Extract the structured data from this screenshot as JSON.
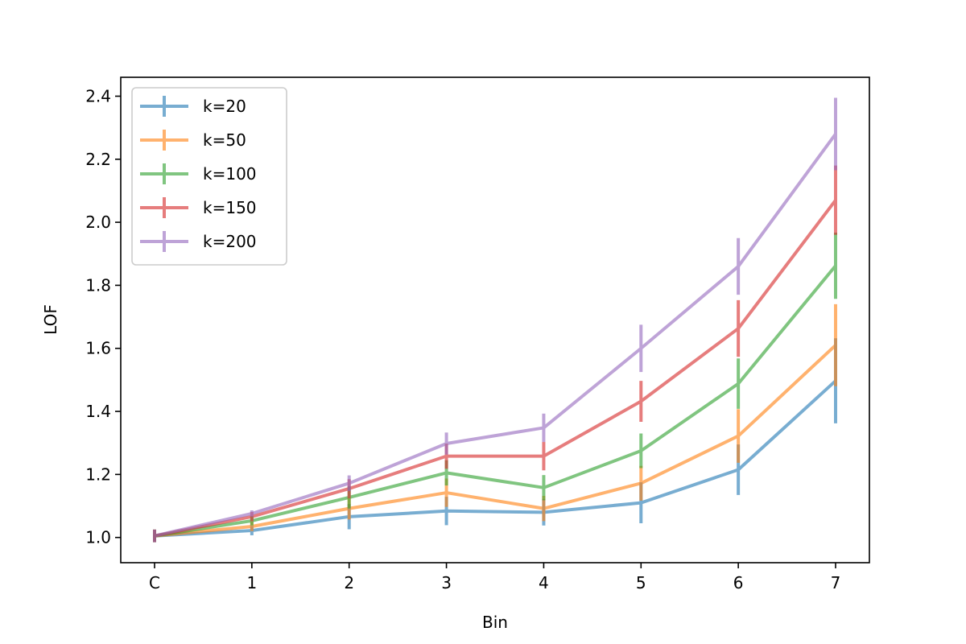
{
  "chart_data": {
    "type": "line",
    "xlabel": "Bin",
    "ylabel": "LOF",
    "categories": [
      "C",
      "1",
      "2",
      "3",
      "4",
      "5",
      "6",
      "7"
    ],
    "ylim": [
      0.92,
      2.46
    ],
    "yticks": [
      "1.0",
      "1.2",
      "1.4",
      "1.6",
      "1.8",
      "2.0",
      "2.2",
      "2.4"
    ],
    "grid": false,
    "legend": "upper-left",
    "error_bars": true,
    "series": [
      {
        "name": "k=20",
        "color": "#1f77b4",
        "values": [
          1.005,
          1.022,
          1.066,
          1.084,
          1.08,
          1.11,
          1.215,
          1.497
        ],
        "errors": [
          0.02,
          0.015,
          0.04,
          0.045,
          0.042,
          0.065,
          0.08,
          0.135
        ]
      },
      {
        "name": "k=50",
        "color": "#ff7f0e",
        "values": [
          1.005,
          1.035,
          1.092,
          1.142,
          1.092,
          1.172,
          1.322,
          1.61
        ],
        "errors": [
          0.02,
          0.015,
          0.035,
          0.045,
          0.04,
          0.055,
          0.085,
          0.13
        ]
      },
      {
        "name": "k=100",
        "color": "#2ca02c",
        "values": [
          1.005,
          1.053,
          1.127,
          1.205,
          1.158,
          1.275,
          1.488,
          1.862
        ],
        "errors": [
          0.02,
          0.015,
          0.035,
          0.04,
          0.04,
          0.055,
          0.08,
          0.105
        ]
      },
      {
        "name": "k=150",
        "color": "#d62728",
        "values": [
          1.005,
          1.066,
          1.155,
          1.258,
          1.258,
          1.432,
          1.663,
          2.07
        ],
        "errors": [
          0.02,
          0.015,
          0.03,
          0.04,
          0.045,
          0.065,
          0.09,
          0.11
        ]
      },
      {
        "name": "k=200",
        "color": "#9467bd",
        "values": [
          1.005,
          1.076,
          1.172,
          1.298,
          1.348,
          1.6,
          1.86,
          2.28
        ],
        "errors": [
          0.02,
          0.01,
          0.025,
          0.035,
          0.045,
          0.075,
          0.09,
          0.115
        ]
      }
    ]
  }
}
